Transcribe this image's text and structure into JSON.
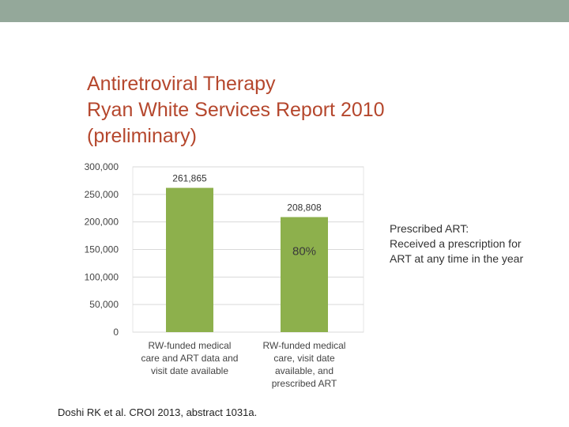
{
  "title": {
    "line1": "Antiretroviral Therapy",
    "line2": "Ryan White Services Report 2010",
    "line3": "(preliminary)"
  },
  "note": {
    "line1": "Prescribed ART:",
    "line2": "Received a prescription for",
    "line3": "ART at any time in the year"
  },
  "citation": "Doshi RK et al. CROI 2013, abstract 1031a.",
  "colors": {
    "bar": "#8db04c",
    "title": "#b5472d",
    "topbar": "#94a89a",
    "grid": "#d9d9d9",
    "annotation": "#b5472d"
  },
  "chart_data": {
    "type": "bar",
    "title": "",
    "xlabel": "",
    "ylabel": "",
    "ylim": [
      0,
      300000
    ],
    "yticks": [
      0,
      50000,
      100000,
      150000,
      200000,
      250000,
      300000
    ],
    "ytick_labels": [
      "0",
      "50,000",
      "100,000",
      "150,000",
      "200,000",
      "250,000",
      "300,000"
    ],
    "categories": [
      [
        "RW-funded medical",
        "care and ART data and",
        "visit date available"
      ],
      [
        "RW-funded medical",
        "care, visit date",
        "available, and",
        "prescribed ART"
      ]
    ],
    "values": [
      261865,
      208808
    ],
    "value_labels": [
      "261,865",
      "208,808"
    ],
    "annotation": "80%",
    "grid": true
  }
}
